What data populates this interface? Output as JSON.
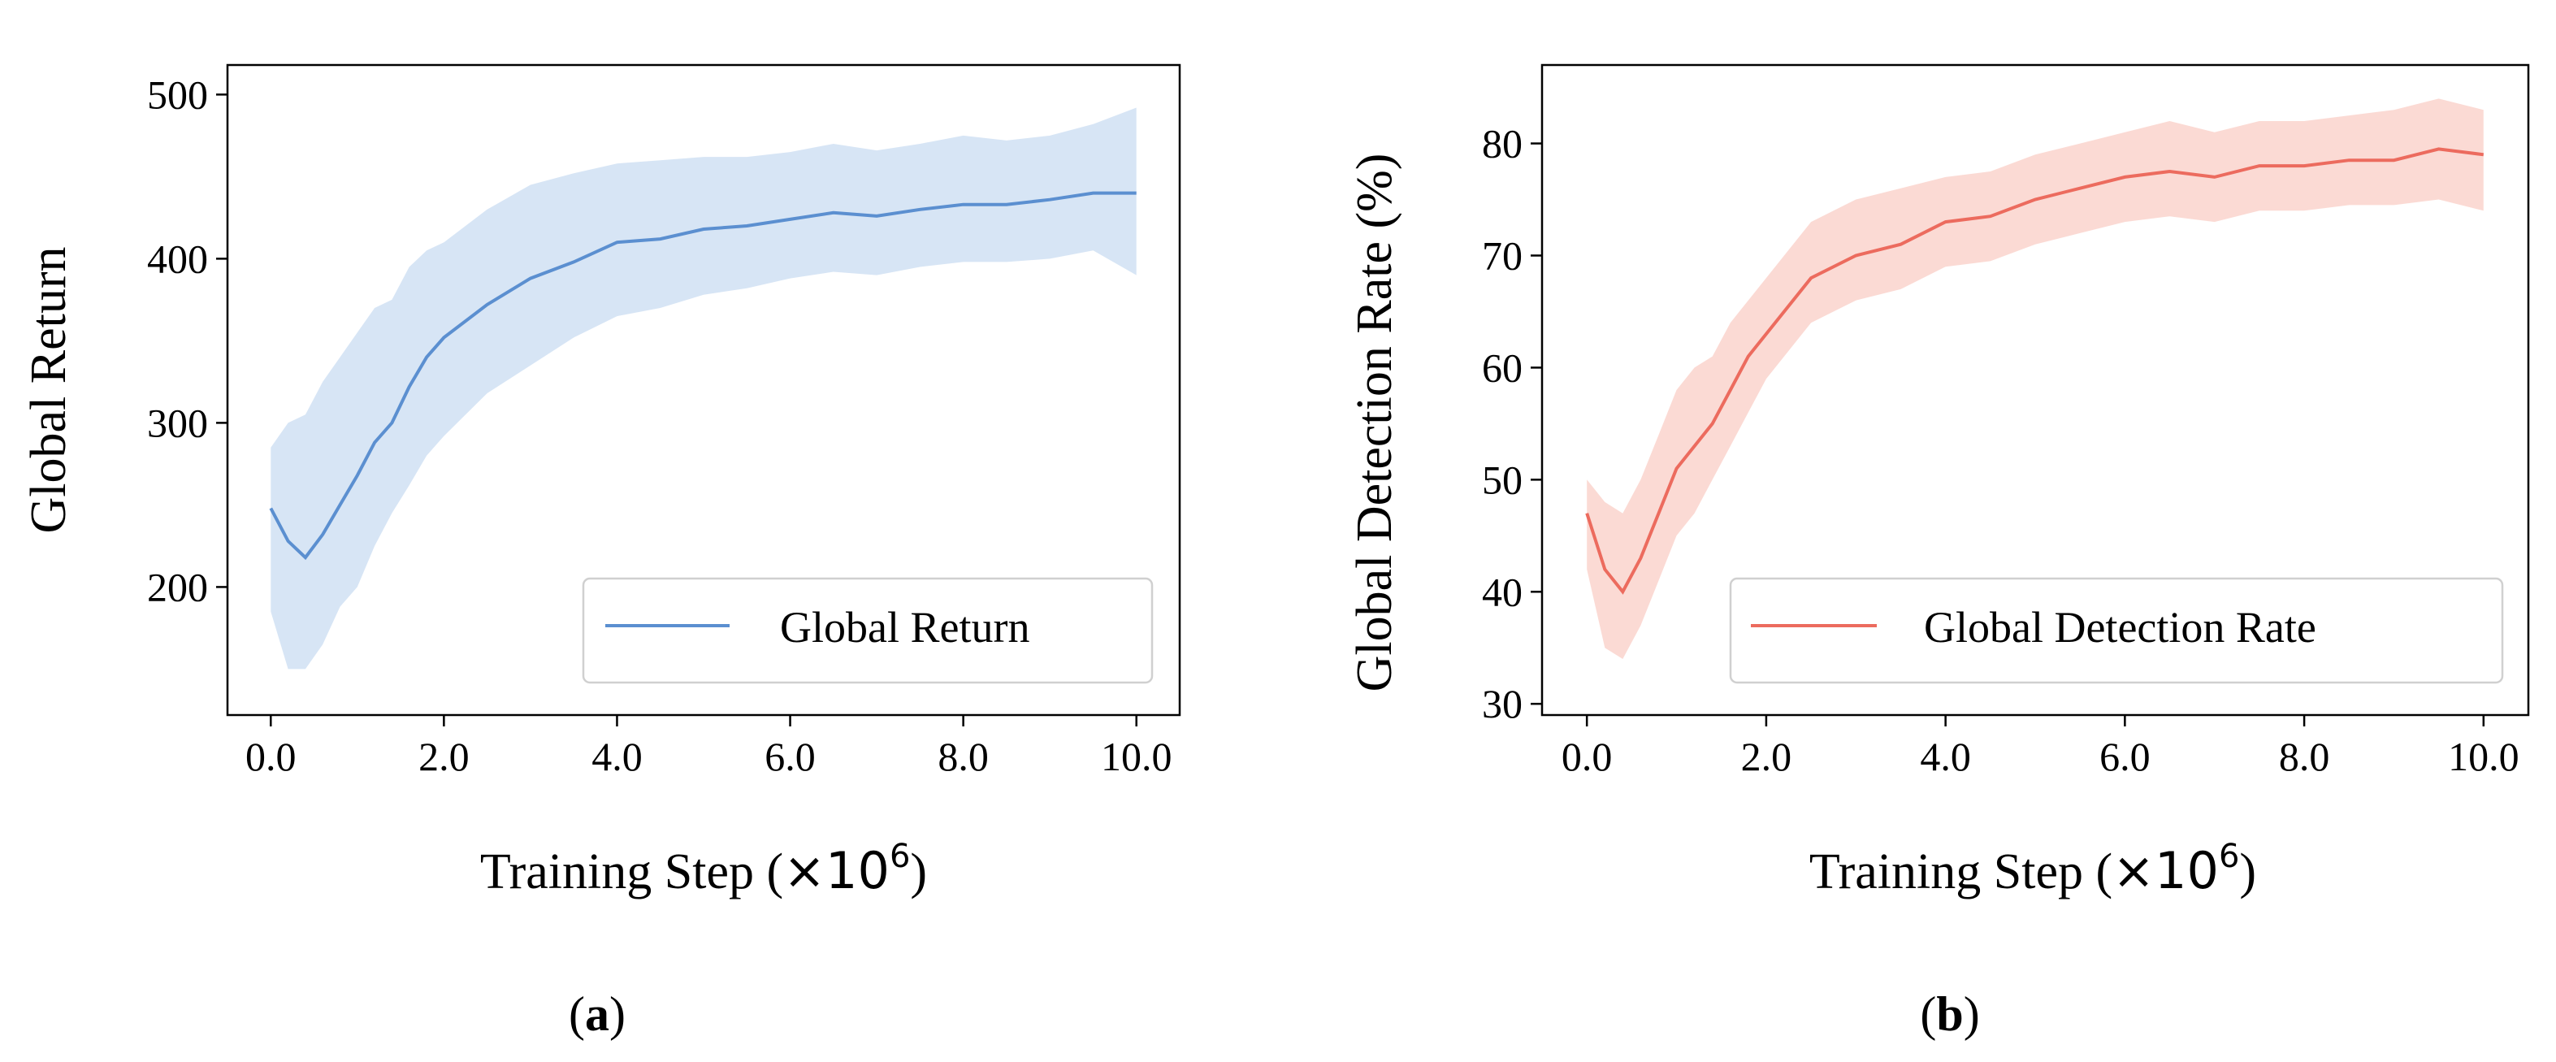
{
  "chart_data": [
    {
      "type": "line",
      "panel_label": "a",
      "xlabel_prefix": "Training Step (",
      "xlabel_multiplier": "×10",
      "xlabel_exponent": "6",
      "xlabel_suffix": ")",
      "ylabel": "Global Return",
      "xlim": [
        -0.5,
        10.5
      ],
      "ylim": [
        122,
        518
      ],
      "x_ticks": [
        0,
        2,
        4,
        6,
        8,
        10
      ],
      "x_tick_labels": [
        "0.0",
        "2.0",
        "4.0",
        "6.0",
        "8.0",
        "10.0"
      ],
      "y_ticks": [
        200,
        300,
        400,
        500
      ],
      "y_tick_labels": [
        "200",
        "300",
        "400",
        "500"
      ],
      "grid": false,
      "legend_position": "lower-right",
      "series": [
        {
          "name": "Global Return",
          "color": "#5b8fd0",
          "band_color": "#c9dcf2",
          "x": [
            0.0,
            0.2,
            0.4,
            0.6,
            0.8,
            1.0,
            1.2,
            1.4,
            1.6,
            1.8,
            2.0,
            2.5,
            3.0,
            3.5,
            4.0,
            4.5,
            5.0,
            5.5,
            6.0,
            6.5,
            7.0,
            7.5,
            8.0,
            8.5,
            9.0,
            9.5,
            10.0
          ],
          "mean": [
            248,
            228,
            218,
            232,
            250,
            268,
            288,
            300,
            322,
            340,
            352,
            372,
            388,
            398,
            410,
            412,
            418,
            420,
            424,
            428,
            426,
            430,
            433,
            433,
            436,
            440,
            440
          ],
          "lower": [
            185,
            150,
            150,
            165,
            188,
            200,
            225,
            245,
            262,
            280,
            292,
            318,
            335,
            352,
            365,
            370,
            378,
            382,
            388,
            392,
            390,
            395,
            398,
            398,
            400,
            405,
            390
          ],
          "upper": [
            285,
            300,
            305,
            325,
            340,
            355,
            370,
            375,
            395,
            405,
            410,
            430,
            445,
            452,
            458,
            460,
            462,
            462,
            465,
            470,
            466,
            470,
            475,
            472,
            475,
            482,
            492
          ]
        }
      ]
    },
    {
      "type": "line",
      "panel_label": "b",
      "xlabel_prefix": "Training Step (",
      "xlabel_multiplier": "×10",
      "xlabel_exponent": "6",
      "xlabel_suffix": ")",
      "ylabel": "Global Detection Rate (%)",
      "xlim": [
        -0.5,
        10.5
      ],
      "ylim": [
        29,
        87
      ],
      "x_ticks": [
        0,
        2,
        4,
        6,
        8,
        10
      ],
      "x_tick_labels": [
        "0.0",
        "2.0",
        "4.0",
        "6.0",
        "8.0",
        "10.0"
      ],
      "y_ticks": [
        30,
        40,
        50,
        60,
        70,
        80
      ],
      "y_tick_labels": [
        "30",
        "40",
        "50",
        "60",
        "70",
        "80"
      ],
      "grid": false,
      "legend_position": "lower-right",
      "series": [
        {
          "name": "Global Detection Rate",
          "color": "#ec6b5e",
          "band_color": "#f9cdc6",
          "x": [
            0.0,
            0.2,
            0.4,
            0.6,
            0.8,
            1.0,
            1.2,
            1.4,
            1.6,
            1.8,
            2.0,
            2.5,
            3.0,
            3.5,
            4.0,
            4.5,
            5.0,
            5.5,
            6.0,
            6.5,
            7.0,
            7.5,
            8.0,
            8.5,
            9.0,
            9.5,
            10.0
          ],
          "mean": [
            47,
            42,
            40,
            43,
            47,
            51,
            53,
            55,
            58,
            61,
            63,
            68,
            70,
            71,
            73,
            73.5,
            75,
            76,
            77,
            77.5,
            77,
            78,
            78,
            78.5,
            78.5,
            79.5,
            79
          ],
          "lower": [
            42,
            35,
            34,
            37,
            41,
            45,
            47,
            50,
            53,
            56,
            59,
            64,
            66,
            67,
            69,
            69.5,
            71,
            72,
            73,
            73.5,
            73,
            74,
            74,
            74.5,
            74.5,
            75,
            74
          ],
          "upper": [
            50,
            48,
            47,
            50,
            54,
            58,
            60,
            61,
            64,
            66,
            68,
            73,
            75,
            76,
            77,
            77.5,
            79,
            80,
            81,
            82,
            81,
            82,
            82,
            82.5,
            83,
            84,
            83
          ]
        }
      ]
    }
  ]
}
